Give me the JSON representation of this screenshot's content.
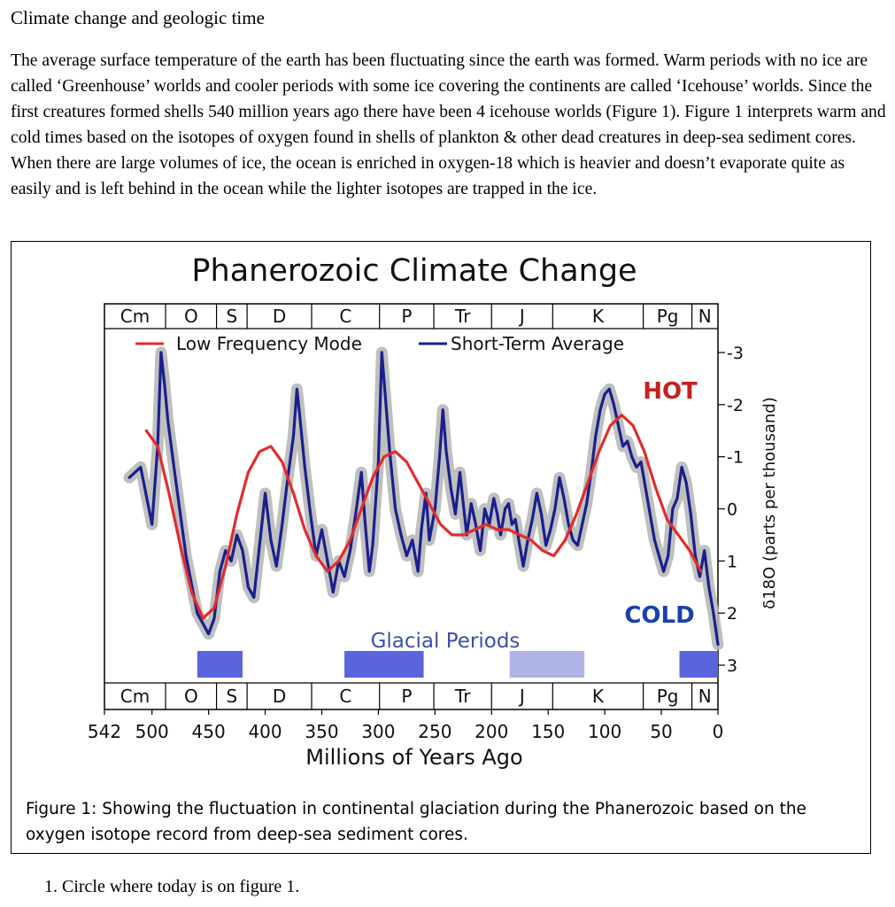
{
  "document": {
    "title": "Climate change and geologic time",
    "intro": "The average surface temperature of the earth has been fluctuating since the earth was formed.  Warm periods with no ice are called ‘Greenhouse’ worlds and cooler periods with some ice covering the continents are called ‘Icehouse’ worlds.  Since the first creatures formed shells 540 million years ago there have been 4 icehouse worlds (Figure 1).  Figure 1 interprets warm and cold times based on the isotopes of oxygen found in shells of plankton & other dead creatures in deep-sea sediment cores.  When there are large volumes of ice, the ocean is enriched in oxygen-18 which is heavier and doesn’t evaporate quite as easily and is left behind in the ocean while the lighter isotopes are trapped in the ice.",
    "caption": "Figure 1: Showing the fluctuation in continental glaciation during the Phanerozoic based on the oxygen isotope record from deep-sea sediment cores.",
    "question": "1.   Circle where today is on figure 1."
  },
  "chart_data": {
    "type": "line",
    "title": "Phanerozoic Climate Change",
    "xlabel": "Millions of Years Ago",
    "ylabel": "δ18O (parts per thousand)",
    "xlim": [
      542,
      0
    ],
    "ylim": [
      3,
      -3
    ],
    "x_ticks": [
      "542",
      "500",
      "450",
      "400",
      "350",
      "300",
      "250",
      "200",
      "150",
      "100",
      "50",
      "0"
    ],
    "y_ticks": [
      {
        "v": -3,
        "label": "-3"
      },
      {
        "v": -2,
        "label": "-2"
      },
      {
        "v": -1,
        "label": "-1"
      },
      {
        "v": 0,
        "label": "0"
      },
      {
        "v": 1,
        "label": "1"
      },
      {
        "v": 2,
        "label": "2"
      },
      {
        "v": 3,
        "label": "3"
      }
    ],
    "periods": [
      {
        "label": "Cm",
        "start": 542,
        "end": 488
      },
      {
        "label": "O",
        "start": 488,
        "end": 443
      },
      {
        "label": "S",
        "start": 443,
        "end": 416
      },
      {
        "label": "D",
        "start": 416,
        "end": 359
      },
      {
        "label": "C",
        "start": 359,
        "end": 299
      },
      {
        "label": "P",
        "start": 299,
        "end": 251
      },
      {
        "label": "Tr",
        "start": 251,
        "end": 200
      },
      {
        "label": "J",
        "start": 200,
        "end": 146
      },
      {
        "label": "K",
        "start": 146,
        "end": 66
      },
      {
        "label": "Pg",
        "start": 66,
        "end": 23
      },
      {
        "label": "N",
        "start": 23,
        "end": 0
      }
    ],
    "legend": {
      "placement": "top",
      "entries": [
        {
          "name": "Low Frequency Mode",
          "color": "#e02d2d"
        },
        {
          "name": "Short-Term Average",
          "color": "#1a1f8c"
        }
      ]
    },
    "annotations": {
      "hot": {
        "text": "HOT",
        "color": "#c62020"
      },
      "cold": {
        "text": "COLD",
        "color": "#1a3fb0"
      },
      "glacial": {
        "text": "Glacial Periods",
        "color": "#3a4fb0"
      }
    },
    "glacial_periods": [
      {
        "start": 460,
        "end": 420,
        "color": "#5a64dc"
      },
      {
        "start": 330,
        "end": 260,
        "color": "#5a64dc"
      },
      {
        "start": 184,
        "end": 118,
        "color": "#b0b4e6"
      },
      {
        "start": 34,
        "end": 0,
        "color": "#5a64dc"
      }
    ],
    "series": [
      {
        "name": "Short-Term Average",
        "color": "#1a1f8c",
        "band_color": "#b8b8b8",
        "x": [
          520,
          510,
          500,
          495,
          492,
          489,
          486,
          480,
          470,
          460,
          450,
          445,
          440,
          435,
          430,
          425,
          420,
          415,
          410,
          405,
          400,
          395,
          390,
          385,
          380,
          375,
          372,
          370,
          365,
          360,
          355,
          350,
          345,
          340,
          335,
          330,
          325,
          320,
          315,
          312,
          308,
          305,
          300,
          297,
          294,
          290,
          285,
          280,
          275,
          270,
          265,
          262,
          258,
          255,
          250,
          246,
          243,
          240,
          236,
          232,
          228,
          225,
          222,
          218,
          214,
          210,
          206,
          202,
          198,
          195,
          192,
          188,
          185,
          182,
          179,
          176,
          172,
          168,
          164,
          160,
          156,
          152,
          148,
          144,
          140,
          136,
          132,
          128,
          124,
          120,
          116,
          112,
          108,
          104,
          100,
          96,
          92,
          88,
          84,
          80,
          76,
          72,
          68,
          64,
          60,
          56,
          52,
          48,
          44,
          40,
          36,
          32,
          28,
          24,
          20,
          16,
          12,
          8,
          4,
          0
        ],
        "y": [
          -0.6,
          -0.8,
          0.3,
          -1.2,
          -3.0,
          -2.4,
          -1.7,
          -0.7,
          0.9,
          2.0,
          2.4,
          2.1,
          1.2,
          0.8,
          1.0,
          0.5,
          0.8,
          1.5,
          1.7,
          0.7,
          -0.3,
          0.6,
          1.1,
          0.3,
          -0.6,
          -1.4,
          -2.3,
          -1.9,
          -0.8,
          0.1,
          0.9,
          0.4,
          1.0,
          1.6,
          1.0,
          1.3,
          0.8,
          0.1,
          -0.7,
          0.2,
          1.2,
          0.7,
          -0.9,
          -3.0,
          -2.2,
          -1.1,
          0.0,
          0.5,
          0.9,
          0.6,
          1.2,
          0.4,
          -0.3,
          0.6,
          0.0,
          -1.0,
          -1.9,
          -1.1,
          -0.4,
          0.1,
          -0.7,
          -0.1,
          0.5,
          -0.1,
          0.3,
          0.8,
          0.0,
          0.3,
          -0.2,
          0.1,
          0.5,
          0.0,
          -0.1,
          0.3,
          0.2,
          0.6,
          1.1,
          0.6,
          0.2,
          -0.3,
          0.1,
          0.7,
          0.4,
          0.0,
          -0.6,
          -0.2,
          0.3,
          0.6,
          0.7,
          0.3,
          -0.1,
          -0.7,
          -1.4,
          -1.9,
          -2.2,
          -2.3,
          -2.0,
          -1.6,
          -1.2,
          -1.3,
          -1.0,
          -0.8,
          -0.9,
          -0.4,
          0.1,
          0.6,
          0.9,
          1.2,
          0.9,
          0.0,
          -0.2,
          -0.8,
          -0.5,
          0.1,
          0.9,
          1.3,
          0.8,
          1.5,
          2.0,
          2.6
        ]
      },
      {
        "name": "Low Frequency Mode",
        "color": "#e02d2d",
        "x": [
          505,
          495,
          485,
          475,
          465,
          455,
          445,
          435,
          425,
          415,
          405,
          395,
          385,
          375,
          365,
          355,
          345,
          335,
          325,
          315,
          305,
          295,
          285,
          275,
          265,
          255,
          245,
          235,
          225,
          215,
          205,
          195,
          185,
          175,
          165,
          155,
          145,
          135,
          125,
          115,
          105,
          95,
          85,
          75,
          65,
          55,
          45,
          35,
          25,
          15
        ],
        "y": [
          -1.5,
          -1.2,
          -0.3,
          0.7,
          1.6,
          2.1,
          1.9,
          1.1,
          0.1,
          -0.7,
          -1.1,
          -1.2,
          -0.9,
          -0.3,
          0.4,
          0.9,
          1.2,
          1.0,
          0.6,
          0.0,
          -0.6,
          -1.0,
          -1.1,
          -0.9,
          -0.5,
          -0.1,
          0.3,
          0.5,
          0.5,
          0.4,
          0.3,
          0.4,
          0.4,
          0.5,
          0.6,
          0.8,
          0.9,
          0.6,
          0.1,
          -0.5,
          -1.1,
          -1.6,
          -1.8,
          -1.6,
          -1.1,
          -0.4,
          0.2,
          0.5,
          0.8,
          1.2
        ]
      }
    ]
  }
}
